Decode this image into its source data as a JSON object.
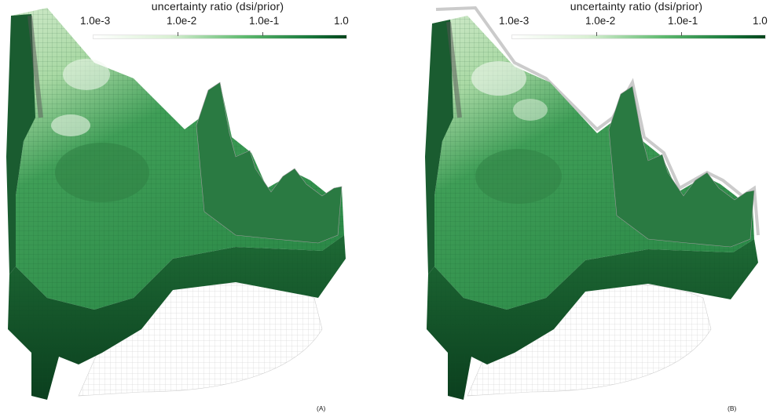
{
  "colors": {
    "ramp_low": "#ffffff",
    "ramp_mid": "#41a35a",
    "ramp_high": "#00441b",
    "mesh_line": "#bdbdbd"
  },
  "colorbar": {
    "title": "uncertainty ratio (dsi/prior)",
    "scale": "log",
    "ticks": [
      "1.0e-3",
      "1.0e-2",
      "1.0e-1",
      "1.0"
    ]
  },
  "panels": [
    {
      "label": "(A)"
    },
    {
      "label": "(B)"
    }
  ]
}
